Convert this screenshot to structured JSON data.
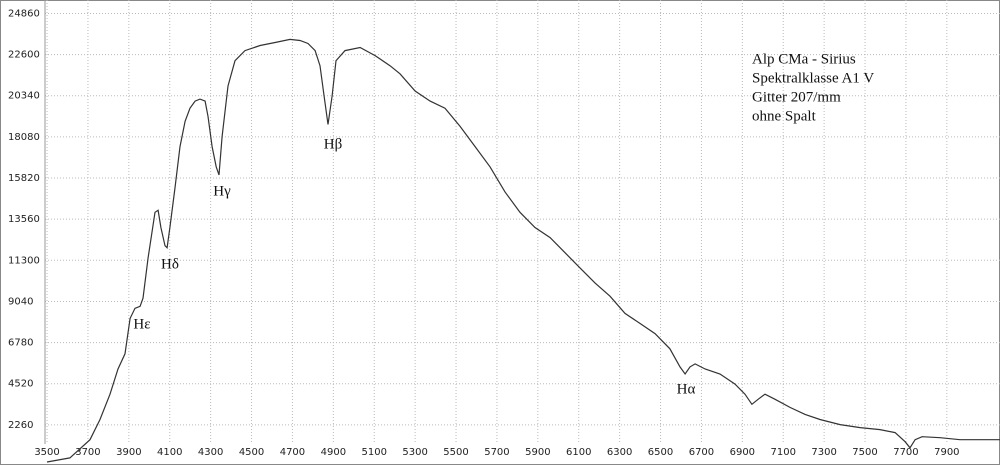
{
  "chart_data": {
    "type": "line",
    "x": [
      3500,
      3612,
      3710,
      3759,
      3808,
      3847,
      3881,
      3906,
      3930,
      3955,
      3969,
      3994,
      4028,
      4043,
      4057,
      4077,
      4087,
      4101,
      4126,
      4150,
      4175,
      4199,
      4224,
      4248,
      4273,
      4287,
      4307,
      4327,
      4341,
      4356,
      4385,
      4419,
      4468,
      4542,
      4615,
      4688,
      4737,
      4776,
      4811,
      4835,
      4855,
      4874,
      4894,
      4913,
      4957,
      5031,
      5104,
      5177,
      5226,
      5300,
      5373,
      5446,
      5520,
      5593,
      5666,
      5740,
      5813,
      5886,
      5960,
      6033,
      6106,
      6180,
      6253,
      6326,
      6400,
      6473,
      6546,
      6595,
      6620,
      6644,
      6669,
      6718,
      6791,
      6864,
      6913,
      6947,
      6977,
      7011,
      7060,
      7133,
      7207,
      7280,
      7378,
      7476,
      7573,
      7647,
      7696,
      7720,
      7745,
      7779,
      7867,
      7965,
      8062,
      8160
    ],
    "series": [
      {
        "color": "#333333",
        "values": [
          222,
          444,
          1444,
          2554,
          3943,
          5331,
          6163,
          8107,
          8662,
          8773,
          9217,
          11438,
          13937,
          14048,
          13104,
          12104,
          11993,
          13104,
          15325,
          17546,
          18934,
          19656,
          20045,
          20156,
          20045,
          19212,
          17546,
          16436,
          15991,
          18101,
          20878,
          22266,
          22821,
          23099,
          23266,
          23433,
          23377,
          23210,
          22821,
          21988,
          20322,
          18768,
          20322,
          22266,
          22821,
          22988,
          22544,
          21988,
          21544,
          20600,
          20045,
          19656,
          18657,
          17546,
          16436,
          15048,
          13937,
          13104,
          12549,
          11716,
          10883,
          10050,
          9328,
          8385,
          7829,
          7274,
          6441,
          5442,
          5053,
          5442,
          5608,
          5331,
          5053,
          4498,
          3943,
          3387,
          3665,
          3943,
          3665,
          3221,
          2832,
          2554,
          2277,
          2110,
          1999,
          1833,
          1333,
          999,
          1444,
          1610,
          1555,
          1444,
          1444,
          1444
        ]
      }
    ],
    "xlim": [
      3490,
      8160
    ],
    "ylim": [
      0,
      25600
    ],
    "xticks": [
      3500,
      3700,
      3900,
      4100,
      4300,
      4500,
      4700,
      4900,
      5100,
      5300,
      5500,
      5700,
      5900,
      6100,
      6300,
      6500,
      6700,
      6900,
      7100,
      7300,
      7500,
      7700,
      7900
    ],
    "yticks": [
      2260,
      4520,
      6780,
      9040,
      11300,
      13560,
      15820,
      18080,
      20340,
      22600,
      24860
    ],
    "grid": true,
    "annotations": [
      "Hε",
      "Hδ",
      "Hγ",
      "Hβ",
      "Hα"
    ],
    "info_text": [
      "Alp CMa - Sirius",
      "Spektralklasse A1 V",
      "Gitter 207/mm",
      "ohne Spalt"
    ]
  }
}
